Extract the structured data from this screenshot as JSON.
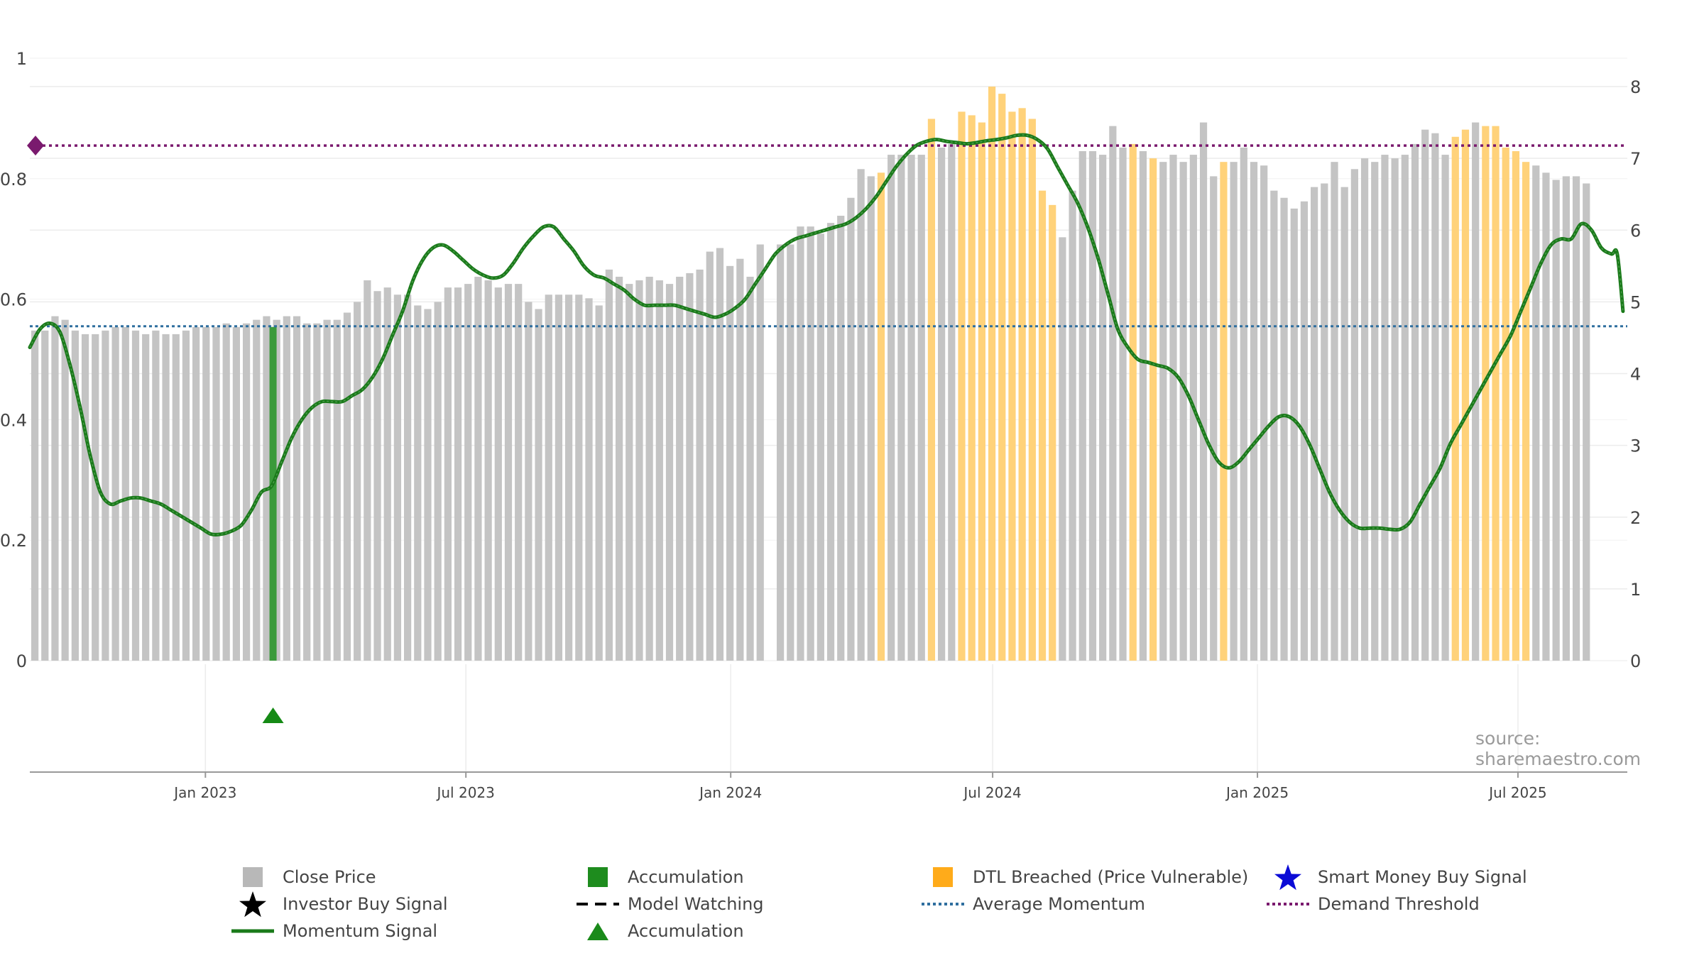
{
  "source_text": "source: sharemaestro.com",
  "legend": [
    {
      "label": "Close Price",
      "symbol": "square",
      "color": "#b8b8b8"
    },
    {
      "label": "Accumulation",
      "symbol": "square",
      "color": "#1e8c1e"
    },
    {
      "label": "DTL Breached (Price Vulnerable)",
      "symbol": "square",
      "color": "#ffab1a"
    },
    {
      "label": "Smart Money Buy Signal",
      "symbol": "star",
      "color": "#0b0bd6"
    },
    {
      "label": "Investor Buy Signal",
      "symbol": "star",
      "color": "#000000"
    },
    {
      "label": "Model Watching",
      "symbol": "dash",
      "color": "#000000"
    },
    {
      "label": "Average Momentum",
      "symbol": "dot",
      "color": "#2f6f9f"
    },
    {
      "label": "Demand Threshold",
      "symbol": "dot",
      "color": "#7a1a6e"
    },
    {
      "label": "Momentum Signal",
      "symbol": "line",
      "color": "#1a7a1a"
    },
    {
      "label": "Accumulation",
      "symbol": "triangle",
      "color": "#1a8a1a"
    }
  ],
  "chart_data": {
    "type": "bar",
    "grid": true,
    "colors": {
      "close": "#c4c4c4",
      "dtl": "#ffd27a",
      "accum": "#3a9a3a",
      "momentum": "#1a7a1a",
      "average": "#2f6f9f",
      "threshold": "#7a1a6e"
    },
    "left_axis": {
      "ylim": [
        0,
        1
      ],
      "ticks": [
        0,
        0.2,
        0.4,
        0.6,
        0.8,
        1
      ],
      "tick_labels": [
        "0",
        "0.2",
        "0.4",
        "0.6",
        "0.8",
        "1"
      ]
    },
    "right_axis": {
      "ylim": [
        0,
        8
      ],
      "ticks": [
        0,
        1,
        2,
        3,
        4,
        5,
        6,
        7,
        8
      ],
      "tick_labels": [
        "0",
        "1",
        "2",
        "3",
        "4",
        "5",
        "6",
        "7",
        "8"
      ]
    },
    "x_axis": {
      "start": "2022-09-01",
      "end": "2025-09-15",
      "ticks": [
        {
          "date": "2023-01-01",
          "label": "Jan 2023"
        },
        {
          "date": "2023-07-01",
          "label": "Jul 2023"
        },
        {
          "date": "2024-01-01",
          "label": "Jan 2024"
        },
        {
          "date": "2024-07-01",
          "label": "Jul 2024"
        },
        {
          "date": "2025-01-01",
          "label": "Jan 2025"
        },
        {
          "date": "2025-07-01",
          "label": "Jul 2025"
        }
      ]
    },
    "average_momentum": 0.555,
    "demand_threshold": 0.855,
    "close_price": {
      "start": "2022-09-01",
      "interval_days": 7,
      "values": [
        4.6,
        4.6,
        4.8,
        4.75,
        4.6,
        4.55,
        4.55,
        4.6,
        4.65,
        4.65,
        4.6,
        4.55,
        4.6,
        4.55,
        4.55,
        4.6,
        4.65,
        4.65,
        4.65,
        4.7,
        4.65,
        4.7,
        4.75,
        4.8,
        4.75,
        4.8,
        4.8,
        4.7,
        4.7,
        4.75,
        4.75,
        4.85,
        5.0,
        5.3,
        5.15,
        5.2,
        5.1,
        5.1,
        4.95,
        4.9,
        5.0,
        5.2,
        5.2,
        5.25,
        5.35,
        5.3,
        5.2,
        5.25,
        5.25,
        5.0,
        4.9,
        5.1,
        5.1,
        5.1,
        5.1,
        5.05,
        4.95,
        5.45,
        5.35,
        5.25,
        5.3,
        5.35,
        5.3,
        5.25,
        5.35,
        5.4,
        5.45,
        5.7,
        5.75,
        5.5,
        5.6,
        5.35,
        5.8,
        0,
        5.8,
        5.8,
        6.05,
        6.05,
        5.95,
        6.1,
        6.2,
        6.45,
        6.85,
        6.75,
        6.8,
        7.05,
        7.05,
        7.05,
        7.05,
        7.55,
        7.15,
        7.2,
        7.65,
        7.6,
        7.5,
        8.0,
        7.9,
        7.65,
        7.7,
        7.55,
        6.55,
        6.35,
        5.9,
        6.55,
        7.1,
        7.1,
        7.05,
        7.45,
        7.15,
        7.2,
        7.1,
        7.0,
        6.95,
        7.05,
        6.95,
        7.05,
        7.5,
        6.75,
        6.95,
        6.95,
        7.15,
        6.95,
        6.9,
        6.55,
        6.45,
        6.3,
        6.4,
        6.6,
        6.65,
        6.95,
        6.6,
        6.85,
        7.0,
        6.95,
        7.05,
        7.0,
        7.05,
        7.2,
        7.4,
        7.35,
        7.05,
        7.3,
        7.4,
        7.5,
        7.45,
        7.45,
        7.15,
        7.1,
        6.95,
        6.9,
        6.8,
        6.7,
        6.75,
        6.75,
        6.65
      ]
    },
    "dtl_breached_weeks": [
      84,
      89,
      92,
      93,
      94,
      95,
      96,
      97,
      98,
      99,
      100,
      101,
      109,
      111,
      118,
      141,
      142,
      144,
      145,
      146,
      147,
      148
    ],
    "accumulation_bars": [
      {
        "date": "2023-02-17",
        "value": 4.65
      }
    ],
    "accumulation_markers": [
      {
        "date": "2023-02-17"
      }
    ],
    "momentum_signal": [
      [
        "2022-09-01",
        0.52
      ],
      [
        "2022-09-08",
        0.55
      ],
      [
        "2022-09-15",
        0.56
      ],
      [
        "2022-09-22",
        0.545
      ],
      [
        "2022-09-29",
        0.49
      ],
      [
        "2022-10-06",
        0.42
      ],
      [
        "2022-10-13",
        0.34
      ],
      [
        "2022-10-20",
        0.28
      ],
      [
        "2022-10-27",
        0.26
      ],
      [
        "2022-11-03",
        0.265
      ],
      [
        "2022-11-10",
        0.27
      ],
      [
        "2022-11-17",
        0.27
      ],
      [
        "2022-11-24",
        0.265
      ],
      [
        "2022-12-01",
        0.26
      ],
      [
        "2022-12-08",
        0.25
      ],
      [
        "2022-12-15",
        0.24
      ],
      [
        "2022-12-22",
        0.23
      ],
      [
        "2022-12-29",
        0.22
      ],
      [
        "2023-01-05",
        0.21
      ],
      [
        "2023-01-12",
        0.21
      ],
      [
        "2023-01-19",
        0.215
      ],
      [
        "2023-01-26",
        0.225
      ],
      [
        "2023-02-02",
        0.25
      ],
      [
        "2023-02-09",
        0.28
      ],
      [
        "2023-02-16",
        0.29
      ],
      [
        "2023-02-23",
        0.33
      ],
      [
        "2023-03-02",
        0.37
      ],
      [
        "2023-03-09",
        0.4
      ],
      [
        "2023-03-16",
        0.42
      ],
      [
        "2023-03-23",
        0.43
      ],
      [
        "2023-03-30",
        0.43
      ],
      [
        "2023-04-06",
        0.43
      ],
      [
        "2023-04-13",
        0.44
      ],
      [
        "2023-04-20",
        0.45
      ],
      [
        "2023-04-27",
        0.47
      ],
      [
        "2023-05-04",
        0.5
      ],
      [
        "2023-05-11",
        0.54
      ],
      [
        "2023-05-18",
        0.58
      ],
      [
        "2023-05-25",
        0.63
      ],
      [
        "2023-06-01",
        0.665
      ],
      [
        "2023-06-08",
        0.685
      ],
      [
        "2023-06-15",
        0.69
      ],
      [
        "2023-06-22",
        0.68
      ],
      [
        "2023-06-29",
        0.665
      ],
      [
        "2023-07-06",
        0.65
      ],
      [
        "2023-07-13",
        0.64
      ],
      [
        "2023-07-20",
        0.635
      ],
      [
        "2023-07-27",
        0.64
      ],
      [
        "2023-08-03",
        0.66
      ],
      [
        "2023-08-10",
        0.685
      ],
      [
        "2023-08-17",
        0.705
      ],
      [
        "2023-08-24",
        0.72
      ],
      [
        "2023-08-31",
        0.72
      ],
      [
        "2023-09-07",
        0.7
      ],
      [
        "2023-09-14",
        0.68
      ],
      [
        "2023-09-21",
        0.655
      ],
      [
        "2023-09-28",
        0.64
      ],
      [
        "2023-10-05",
        0.635
      ],
      [
        "2023-10-12",
        0.625
      ],
      [
        "2023-10-19",
        0.615
      ],
      [
        "2023-10-26",
        0.6
      ],
      [
        "2023-11-02",
        0.59
      ],
      [
        "2023-11-09",
        0.59
      ],
      [
        "2023-11-16",
        0.59
      ],
      [
        "2023-11-23",
        0.59
      ],
      [
        "2023-11-30",
        0.585
      ],
      [
        "2023-12-07",
        0.58
      ],
      [
        "2023-12-14",
        0.575
      ],
      [
        "2023-12-21",
        0.57
      ],
      [
        "2023-12-28",
        0.575
      ],
      [
        "2024-01-04",
        0.585
      ],
      [
        "2024-01-11",
        0.6
      ],
      [
        "2024-01-18",
        0.625
      ],
      [
        "2024-01-25",
        0.65
      ],
      [
        "2024-02-01",
        0.675
      ],
      [
        "2024-02-08",
        0.69
      ],
      [
        "2024-02-15",
        0.7
      ],
      [
        "2024-02-22",
        0.705
      ],
      [
        "2024-02-29",
        0.71
      ],
      [
        "2024-03-07",
        0.715
      ],
      [
        "2024-03-14",
        0.72
      ],
      [
        "2024-03-21",
        0.725
      ],
      [
        "2024-03-28",
        0.735
      ],
      [
        "2024-04-04",
        0.75
      ],
      [
        "2024-04-11",
        0.77
      ],
      [
        "2024-04-18",
        0.795
      ],
      [
        "2024-04-25",
        0.82
      ],
      [
        "2024-05-02",
        0.84
      ],
      [
        "2024-05-09",
        0.855
      ],
      [
        "2024-05-16",
        0.862
      ],
      [
        "2024-05-23",
        0.865
      ],
      [
        "2024-05-30",
        0.862
      ],
      [
        "2024-06-06",
        0.86
      ],
      [
        "2024-06-13",
        0.858
      ],
      [
        "2024-06-20",
        0.86
      ],
      [
        "2024-06-27",
        0.863
      ],
      [
        "2024-07-04",
        0.865
      ],
      [
        "2024-07-11",
        0.868
      ],
      [
        "2024-07-18",
        0.872
      ],
      [
        "2024-07-25",
        0.872
      ],
      [
        "2024-08-01",
        0.865
      ],
      [
        "2024-08-08",
        0.85
      ],
      [
        "2024-08-15",
        0.82
      ],
      [
        "2024-08-22",
        0.79
      ],
      [
        "2024-08-29",
        0.76
      ],
      [
        "2024-09-05",
        0.72
      ],
      [
        "2024-09-12",
        0.67
      ],
      [
        "2024-09-19",
        0.61
      ],
      [
        "2024-09-26",
        0.55
      ],
      [
        "2024-10-03",
        0.52
      ],
      [
        "2024-10-10",
        0.5
      ],
      [
        "2024-10-17",
        0.495
      ],
      [
        "2024-10-24",
        0.49
      ],
      [
        "2024-10-31",
        0.485
      ],
      [
        "2024-11-07",
        0.47
      ],
      [
        "2024-11-14",
        0.44
      ],
      [
        "2024-11-21",
        0.4
      ],
      [
        "2024-11-28",
        0.36
      ],
      [
        "2024-12-05",
        0.33
      ],
      [
        "2024-12-12",
        0.32
      ],
      [
        "2024-12-19",
        0.33
      ],
      [
        "2024-12-26",
        0.35
      ],
      [
        "2025-01-02",
        0.37
      ],
      [
        "2025-01-09",
        0.39
      ],
      [
        "2025-01-16",
        0.405
      ],
      [
        "2025-01-23",
        0.405
      ],
      [
        "2025-01-30",
        0.39
      ],
      [
        "2025-02-06",
        0.36
      ],
      [
        "2025-02-13",
        0.32
      ],
      [
        "2025-02-20",
        0.28
      ],
      [
        "2025-02-27",
        0.25
      ],
      [
        "2025-03-06",
        0.23
      ],
      [
        "2025-03-13",
        0.22
      ],
      [
        "2025-03-20",
        0.22
      ],
      [
        "2025-03-27",
        0.22
      ],
      [
        "2025-04-03",
        0.218
      ],
      [
        "2025-04-10",
        0.218
      ],
      [
        "2025-04-17",
        0.23
      ],
      [
        "2025-04-24",
        0.26
      ],
      [
        "2025-05-01",
        0.29
      ],
      [
        "2025-05-08",
        0.32
      ],
      [
        "2025-05-15",
        0.36
      ],
      [
        "2025-05-22",
        0.39
      ],
      [
        "2025-05-29",
        0.42
      ],
      [
        "2025-06-05",
        0.45
      ],
      [
        "2025-06-12",
        0.48
      ],
      [
        "2025-06-19",
        0.51
      ],
      [
        "2025-06-26",
        0.54
      ],
      [
        "2025-07-03",
        0.58
      ],
      [
        "2025-07-10",
        0.62
      ],
      [
        "2025-07-17",
        0.66
      ],
      [
        "2025-07-24",
        0.69
      ],
      [
        "2025-07-31",
        0.7
      ],
      [
        "2025-08-07",
        0.7
      ],
      [
        "2025-08-14",
        0.725
      ],
      [
        "2025-08-21",
        0.715
      ],
      [
        "2025-08-28",
        0.685
      ],
      [
        "2025-09-04",
        0.675
      ],
      [
        "2025-09-08",
        0.675
      ],
      [
        "2025-09-12",
        0.58
      ]
    ]
  }
}
